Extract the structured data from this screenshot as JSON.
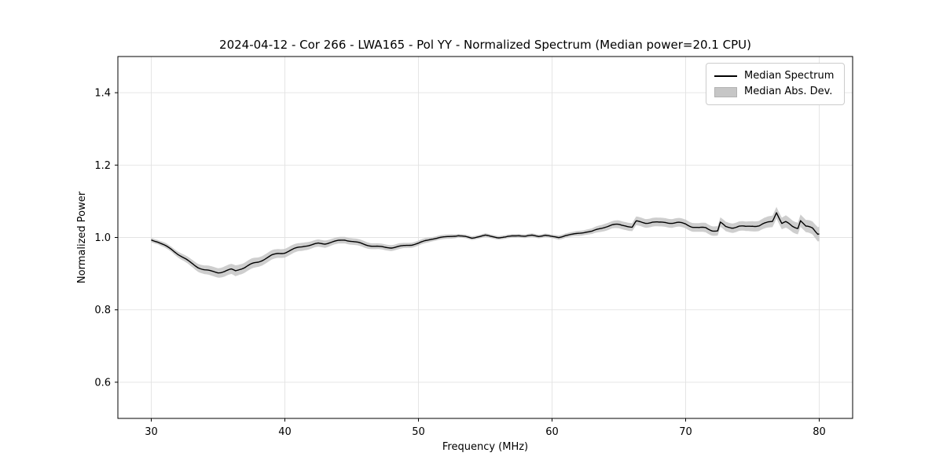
{
  "figure": {
    "title": "2024-04-12 - Cor 266 - LWA165 - Pol YY - Normalized Spectrum (Median power=20.1 CPU)",
    "xlabel": "Frequency (MHz)",
    "ylabel": "Normalized Power"
  },
  "legend": {
    "entries": [
      {
        "label": "Median Spectrum",
        "swatch": "black-line"
      },
      {
        "label": "Median Abs. Dev.",
        "swatch": "gray-patch"
      }
    ]
  },
  "colors": {
    "line": "#000000",
    "band": "#c6c6c6",
    "grid": "#e3e3e3",
    "spine": "#000000",
    "text": "#000000"
  },
  "chart_data": {
    "type": "line",
    "title": "2024-04-12 - Cor 266 - LWA165 - Pol YY - Normalized Spectrum (Median power=20.1 CPU)",
    "xlabel": "Frequency (MHz)",
    "ylabel": "Normalized Power",
    "xlim": [
      27.5,
      82.5
    ],
    "ylim": [
      0.5,
      1.5
    ],
    "xticks": [
      30,
      40,
      50,
      60,
      70,
      80
    ],
    "yticks": [
      0.6,
      0.8,
      1.0,
      1.2,
      1.4
    ],
    "grid": true,
    "legend_position": "upper right",
    "noise_amplitude_factor": 0.35,
    "series": [
      {
        "name": "Median Spectrum",
        "band_name": "Median Abs. Dev.",
        "color": "#000000",
        "band_color": "#c6c6c6",
        "point_format": "[frequency_MHz, normalized_power, median_abs_dev]",
        "points": [
          [
            30,
            0.993,
            0.006
          ],
          [
            30.5,
            0.987,
            0.006
          ],
          [
            31,
            0.977,
            0.007
          ],
          [
            31.5,
            0.966,
            0.007
          ],
          [
            32,
            0.953,
            0.008
          ],
          [
            32.5,
            0.941,
            0.009
          ],
          [
            33,
            0.929,
            0.01
          ],
          [
            33.5,
            0.919,
            0.011
          ],
          [
            34,
            0.912,
            0.012
          ],
          [
            34.5,
            0.908,
            0.013
          ],
          [
            35,
            0.906,
            0.013
          ],
          [
            35.5,
            0.908,
            0.014
          ],
          [
            36,
            0.911,
            0.014
          ],
          [
            36.3,
            0.907,
            0.015
          ],
          [
            36.6,
            0.912,
            0.014
          ],
          [
            37,
            0.916,
            0.014
          ],
          [
            37.5,
            0.923,
            0.014
          ],
          [
            38,
            0.93,
            0.013
          ],
          [
            38.5,
            0.94,
            0.013
          ],
          [
            39,
            0.949,
            0.013
          ],
          [
            39.5,
            0.956,
            0.012
          ],
          [
            40,
            0.96,
            0.012
          ],
          [
            40.5,
            0.967,
            0.012
          ],
          [
            41,
            0.974,
            0.011
          ],
          [
            41.5,
            0.979,
            0.011
          ],
          [
            42,
            0.98,
            0.01
          ],
          [
            42.5,
            0.983,
            0.01
          ],
          [
            43,
            0.982,
            0.01
          ],
          [
            43.5,
            0.986,
            0.009
          ],
          [
            44,
            0.989,
            0.009
          ],
          [
            44.5,
            0.992,
            0.009
          ],
          [
            45,
            0.989,
            0.009
          ],
          [
            45.5,
            0.985,
            0.009
          ],
          [
            46,
            0.981,
            0.009
          ],
          [
            46.5,
            0.978,
            0.008
          ],
          [
            47,
            0.976,
            0.008
          ],
          [
            47.5,
            0.974,
            0.008
          ],
          [
            48,
            0.973,
            0.008
          ],
          [
            48.5,
            0.975,
            0.008
          ],
          [
            49,
            0.977,
            0.007
          ],
          [
            49.5,
            0.979,
            0.007
          ],
          [
            50,
            0.983,
            0.007
          ],
          [
            50.5,
            0.989,
            0.007
          ],
          [
            51,
            0.995,
            0.006
          ],
          [
            51.5,
            0.999,
            0.006
          ],
          [
            52,
            1.001,
            0.006
          ],
          [
            52.5,
            1.004,
            0.006
          ],
          [
            53,
            1.006,
            0.005
          ],
          [
            53.5,
            1.003,
            0.005
          ],
          [
            54,
            0.999,
            0.005
          ],
          [
            54.5,
            1.003,
            0.005
          ],
          [
            55,
            1.006,
            0.005
          ],
          [
            55.5,
            1.002,
            0.005
          ],
          [
            56,
            0.999,
            0.005
          ],
          [
            56.5,
            1.0,
            0.005
          ],
          [
            57,
            1.003,
            0.005
          ],
          [
            57.5,
            1.005,
            0.005
          ],
          [
            58,
            1.003,
            0.005
          ],
          [
            58.5,
            1.006,
            0.005
          ],
          [
            59,
            1.004,
            0.005
          ],
          [
            59.5,
            1.007,
            0.005
          ],
          [
            60,
            1.003,
            0.005
          ],
          [
            60.5,
            1.001,
            0.006
          ],
          [
            61,
            1.006,
            0.006
          ],
          [
            61.5,
            1.008,
            0.006
          ],
          [
            62,
            1.011,
            0.007
          ],
          [
            62.5,
            1.014,
            0.007
          ],
          [
            63,
            1.015,
            0.008
          ],
          [
            63.5,
            1.022,
            0.009
          ],
          [
            64,
            1.029,
            0.01
          ],
          [
            64.5,
            1.034,
            0.01
          ],
          [
            65,
            1.036,
            0.011
          ],
          [
            65.5,
            1.035,
            0.011
          ],
          [
            66,
            1.03,
            0.011
          ],
          [
            66.3,
            1.046,
            0.012
          ],
          [
            67,
            1.042,
            0.012
          ],
          [
            67.5,
            1.043,
            0.012
          ],
          [
            68,
            1.04,
            0.012
          ],
          [
            68.5,
            1.041,
            0.012
          ],
          [
            69,
            1.038,
            0.012
          ],
          [
            69.5,
            1.038,
            0.012
          ],
          [
            70,
            1.036,
            0.012
          ],
          [
            70.5,
            1.029,
            0.012
          ],
          [
            71,
            1.026,
            0.012
          ],
          [
            71.5,
            1.028,
            0.013
          ],
          [
            72,
            1.022,
            0.013
          ],
          [
            72.4,
            1.02,
            0.013
          ],
          [
            72.6,
            1.043,
            0.013
          ],
          [
            73,
            1.031,
            0.013
          ],
          [
            73.5,
            1.029,
            0.013
          ],
          [
            74,
            1.031,
            0.013
          ],
          [
            74.5,
            1.028,
            0.013
          ],
          [
            75,
            1.031,
            0.014
          ],
          [
            75.5,
            1.03,
            0.014
          ],
          [
            76,
            1.036,
            0.015
          ],
          [
            76.5,
            1.044,
            0.016
          ],
          [
            76.8,
            1.07,
            0.016
          ],
          [
            77.2,
            1.038,
            0.016
          ],
          [
            77.5,
            1.042,
            0.017
          ],
          [
            78,
            1.033,
            0.016
          ],
          [
            78.4,
            1.03,
            0.016
          ],
          [
            78.6,
            1.051,
            0.017
          ],
          [
            79,
            1.032,
            0.017
          ],
          [
            79.5,
            1.028,
            0.018
          ],
          [
            80,
            1.01,
            0.02
          ]
        ]
      }
    ]
  }
}
